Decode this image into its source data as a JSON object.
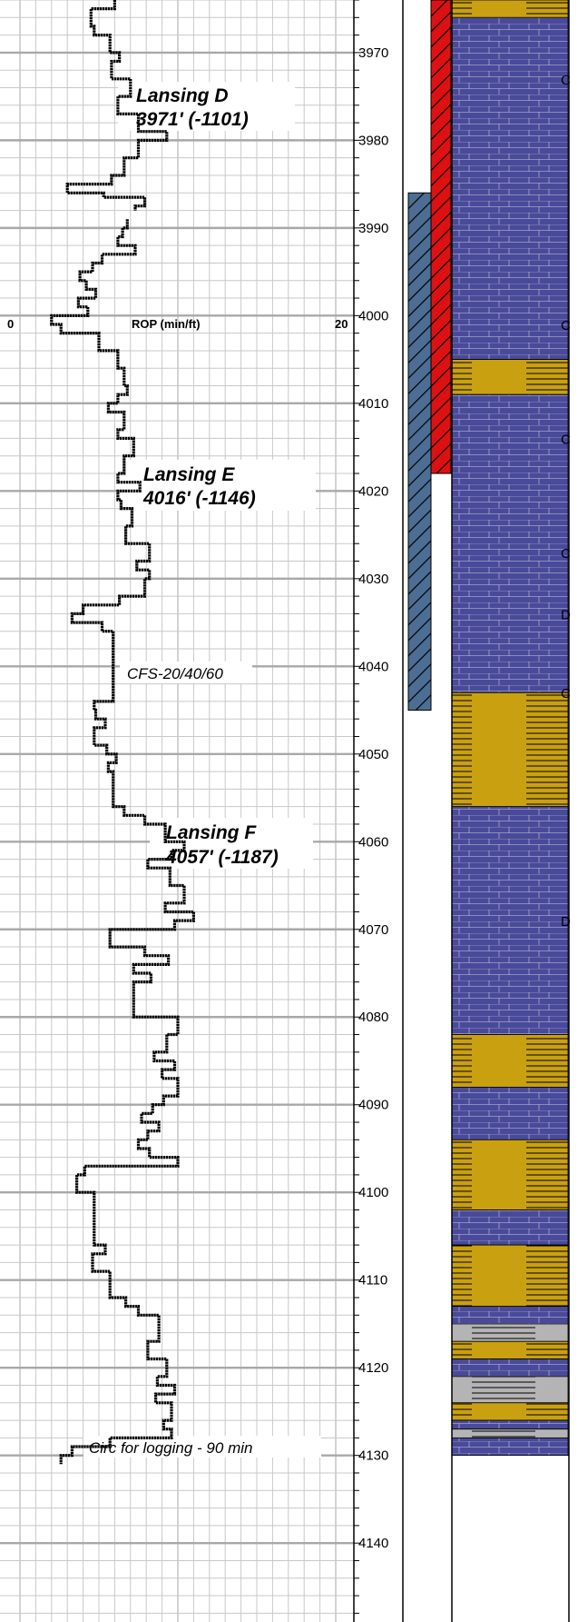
{
  "depth_track": {
    "start_depth": 3964,
    "end_depth": 4149,
    "labels": [
      "3970",
      "3980",
      "3990",
      "4000",
      "4010",
      "4020",
      "4030",
      "4040",
      "4050",
      "4060",
      "4070",
      "4080",
      "4090",
      "4100",
      "4110",
      "4120",
      "4130",
      "4140"
    ]
  },
  "rop_track": {
    "title": "ROP (min/ft)",
    "scale_min": "0",
    "scale_max": "20",
    "curve": [
      [
        3964,
        6
      ],
      [
        3965,
        4.5
      ],
      [
        3966,
        4.5
      ],
      [
        3967,
        4.7
      ],
      [
        3968,
        5.7
      ],
      [
        3969,
        5.7
      ],
      [
        3970,
        6.3
      ],
      [
        3971,
        5.8
      ],
      [
        3972,
        5.8
      ],
      [
        3973,
        7.0
      ],
      [
        3974,
        7.0
      ],
      [
        3975,
        6.2
      ],
      [
        3976,
        6.2
      ],
      [
        3977,
        7.5
      ],
      [
        3978,
        7.5
      ],
      [
        3979,
        9.3
      ],
      [
        3980,
        7.5
      ],
      [
        3981,
        7.5
      ],
      [
        3982,
        6.6
      ],
      [
        3983,
        6.6
      ],
      [
        3984,
        5.8
      ],
      [
        3985,
        3.0
      ],
      [
        3986,
        5.3
      ],
      [
        3986.5,
        7.9
      ],
      [
        3987.5,
        7.3
      ],
      [
        3988,
        null
      ],
      [
        3989,
        6.8
      ],
      [
        3990,
        6.5
      ],
      [
        3991,
        6.2
      ],
      [
        3992,
        7.3
      ],
      [
        3993,
        5.2
      ],
      [
        3994,
        4.6
      ],
      [
        3995,
        3.8
      ],
      [
        3996,
        4.2
      ],
      [
        3997,
        4.8
      ],
      [
        3998,
        3.7
      ],
      [
        3999,
        4.3
      ],
      [
        4000,
        2.0
      ],
      [
        4001,
        2.6
      ],
      [
        4002,
        5.0
      ],
      [
        4003,
        5.0
      ],
      [
        4004,
        6.2
      ],
      [
        4005,
        6.2
      ],
      [
        4006,
        6.6
      ],
      [
        4007,
        6.6
      ],
      [
        4008,
        6.8
      ],
      [
        4009,
        6.2
      ],
      [
        4010,
        5.6
      ],
      [
        4011,
        6.6
      ],
      [
        4012,
        6.6
      ],
      [
        4013,
        6.2
      ],
      [
        4014,
        7.2
      ],
      [
        4015,
        7.2
      ],
      [
        4016,
        6.6
      ],
      [
        4017,
        6.6
      ],
      [
        4018,
        6.2
      ],
      [
        4019,
        7.6
      ],
      [
        4020,
        6.2
      ],
      [
        4021,
        6.4
      ],
      [
        4022,
        7.1
      ],
      [
        4023,
        7.1
      ],
      [
        4024,
        6.7
      ],
      [
        4025,
        6.7
      ],
      [
        4026,
        8.2
      ],
      [
        4027,
        8.2
      ],
      [
        4028,
        7.4
      ],
      [
        4029,
        8.2
      ],
      [
        4030,
        7.9
      ],
      [
        4031,
        7.9
      ],
      [
        4032,
        6.3
      ],
      [
        4033,
        4.0
      ],
      [
        4034,
        3.3
      ],
      [
        4035,
        5.2
      ],
      [
        4036,
        5.9
      ],
      [
        4037,
        5.9
      ],
      [
        4038,
        5.9
      ],
      [
        4039,
        5.9
      ],
      [
        4040,
        5.9
      ],
      [
        4041,
        5.9
      ],
      [
        4042,
        5.9
      ],
      [
        4043,
        5.9
      ],
      [
        4044,
        4.7
      ],
      [
        4045,
        4.8
      ],
      [
        4046,
        5.4
      ],
      [
        4047,
        4.7
      ],
      [
        4048,
        4.7
      ],
      [
        4049,
        5.5
      ],
      [
        4050,
        6.1
      ],
      [
        4051,
        5.6
      ],
      [
        4052,
        5.9
      ],
      [
        4053,
        5.9
      ],
      [
        4054,
        5.9
      ],
      [
        4055,
        5.9
      ],
      [
        4056,
        6.6
      ],
      [
        4057,
        7.9
      ],
      [
        4058,
        9.2
      ],
      [
        4059,
        9.2
      ],
      [
        4060,
        10.4
      ],
      [
        4061,
        9.6
      ],
      [
        4062,
        8.1
      ],
      [
        4063,
        9.5
      ],
      [
        4064,
        9.5
      ],
      [
        4065,
        10.4
      ],
      [
        4066,
        10.4
      ],
      [
        4067,
        9.2
      ],
      [
        4068,
        11.0
      ],
      [
        4069,
        9.8
      ],
      [
        4070,
        5.7
      ],
      [
        4071,
        5.7
      ],
      [
        4072,
        7.9
      ],
      [
        4073,
        9.4
      ],
      [
        4074,
        7.2
      ],
      [
        4075,
        8.3
      ],
      [
        4076,
        7.2
      ],
      [
        4077,
        7.2
      ],
      [
        4078,
        7.2
      ],
      [
        4079,
        7.2
      ],
      [
        4080,
        10.0
      ],
      [
        4081,
        10.0
      ],
      [
        4082,
        9.3
      ],
      [
        4083,
        9.3
      ],
      [
        4084,
        8.5
      ],
      [
        4085,
        9.8
      ],
      [
        4086,
        9.0
      ],
      [
        4087,
        10.0
      ],
      [
        4088,
        10.0
      ],
      [
        4089,
        9.1
      ],
      [
        4090,
        8.4
      ],
      [
        4091,
        7.7
      ],
      [
        4092,
        8.8
      ],
      [
        4093,
        8.1
      ],
      [
        4094,
        7.5
      ],
      [
        4095,
        8.2
      ],
      [
        4096,
        10.0
      ],
      [
        4097,
        4.1
      ],
      [
        4098,
        3.6
      ],
      [
        4099,
        3.6
      ],
      [
        4100,
        4.7
      ],
      [
        4101,
        4.7
      ],
      [
        4102,
        4.7
      ],
      [
        4103,
        4.7
      ],
      [
        4104,
        4.7
      ],
      [
        4105,
        4.7
      ],
      [
        4106,
        5.4
      ],
      [
        4107,
        4.6
      ],
      [
        4108,
        4.6
      ],
      [
        4109,
        5.7
      ],
      [
        4110,
        5.7
      ],
      [
        4111,
        5.7
      ],
      [
        4112,
        6.7
      ],
      [
        4113,
        7.5
      ],
      [
        4114,
        8.8
      ],
      [
        4115,
        8.8
      ],
      [
        4116,
        8.8
      ],
      [
        4117,
        8.1
      ],
      [
        4118,
        8.1
      ],
      [
        4119,
        9.3
      ],
      [
        4120,
        9.3
      ],
      [
        4121,
        8.7
      ],
      [
        4122,
        9.8
      ],
      [
        4123,
        8.6
      ],
      [
        4124,
        9.6
      ],
      [
        4125,
        9.6
      ],
      [
        4126,
        9.1
      ],
      [
        4127,
        9.6
      ],
      [
        4128,
        5.7
      ],
      [
        4129,
        3.3
      ],
      [
        4130,
        2.6
      ]
    ]
  },
  "annotations": [
    {
      "line1": "Lansing D",
      "line2": "3971' (-1101)"
    },
    {
      "line1": "Lansing E",
      "line2": "4016' (-1146)"
    },
    {
      "line1": "Lansing F",
      "line2": "4057' (-1187)"
    }
  ],
  "notes": {
    "cfs": "CFS-20/40/60",
    "circ": "Circ for logging - 90 min"
  },
  "lithology": [
    {
      "from": 3964,
      "to": 3966,
      "type": "sand"
    },
    {
      "from": 3966,
      "to": 4005,
      "type": "limestone"
    },
    {
      "from": 4005,
      "to": 4009,
      "type": "sand"
    },
    {
      "from": 4009,
      "to": 4043,
      "type": "limestone"
    },
    {
      "from": 4043,
      "to": 4056,
      "type": "sand"
    },
    {
      "from": 4056,
      "to": 4082,
      "type": "limestone"
    },
    {
      "from": 4082,
      "to": 4088,
      "type": "sand"
    },
    {
      "from": 4088,
      "to": 4094,
      "type": "limestone"
    },
    {
      "from": 4094,
      "to": 4102,
      "type": "sand"
    },
    {
      "from": 4102,
      "to": 4106,
      "type": "limestone"
    },
    {
      "from": 4106,
      "to": 4113,
      "type": "sand"
    },
    {
      "from": 4113,
      "to": 4115,
      "type": "limestone"
    },
    {
      "from": 4115,
      "to": 4117,
      "type": "shale"
    },
    {
      "from": 4117,
      "to": 4119,
      "type": "sand"
    },
    {
      "from": 4119,
      "to": 4121,
      "type": "limestone"
    },
    {
      "from": 4121,
      "to": 4124,
      "type": "shale"
    },
    {
      "from": 4124,
      "to": 4126,
      "type": "sand"
    },
    {
      "from": 4126,
      "to": 4127,
      "type": "limestone"
    },
    {
      "from": 4127,
      "to": 4128,
      "type": "shale"
    },
    {
      "from": 4128,
      "to": 4130,
      "type": "limestone"
    }
  ],
  "cut_letters": [
    {
      "depth": 3973,
      "letter": "C"
    },
    {
      "depth": 4001,
      "letter": "C"
    },
    {
      "depth": 4014,
      "letter": "C"
    },
    {
      "depth": 4027,
      "letter": "C"
    },
    {
      "depth": 4034,
      "letter": "D"
    },
    {
      "depth": 4043,
      "letter": "C"
    },
    {
      "depth": 4069,
      "letter": "D"
    }
  ],
  "colors": {
    "grid": "#c8c8c8",
    "grid_major": "#a8a8a8",
    "curve": "#000000",
    "limestone": "#4a4a9a",
    "sand": "#c9a010",
    "shale": "#b4b4b4",
    "red_bar": "#dd1111",
    "blue_bar": "#4c6e94"
  },
  "bars": {
    "red": {
      "from": 3964,
      "to": 4018
    },
    "blue": {
      "from": 3986,
      "to": 4045
    }
  }
}
